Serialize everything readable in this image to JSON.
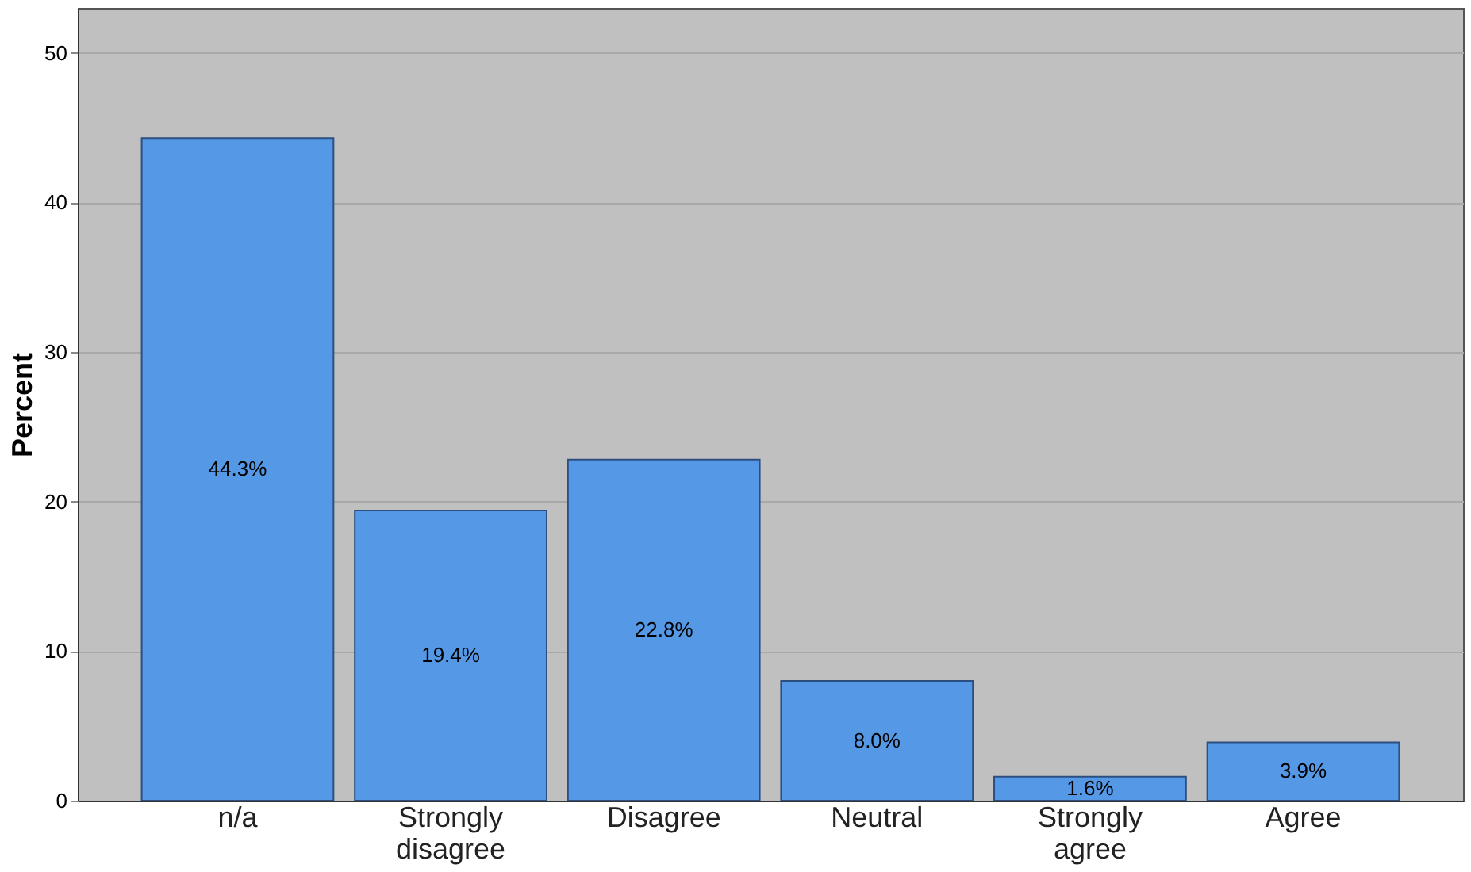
{
  "chart_data": {
    "type": "bar",
    "categories": [
      "n/a",
      "Strongly disagree",
      "Disagree",
      "Neutral",
      "Strongly agree",
      "Agree"
    ],
    "values": [
      44.3,
      19.4,
      22.8,
      8.0,
      1.6,
      3.9
    ],
    "value_labels": [
      "44.3%",
      "19.4%",
      "22.8%",
      "8.0%",
      "1.6%",
      "3.9%"
    ],
    "color": "#5599e6",
    "ylabel": "Percent",
    "ylim": [
      0,
      53
    ],
    "yticks": [
      0,
      10,
      20,
      30,
      40,
      50
    ],
    "grid": "y"
  }
}
